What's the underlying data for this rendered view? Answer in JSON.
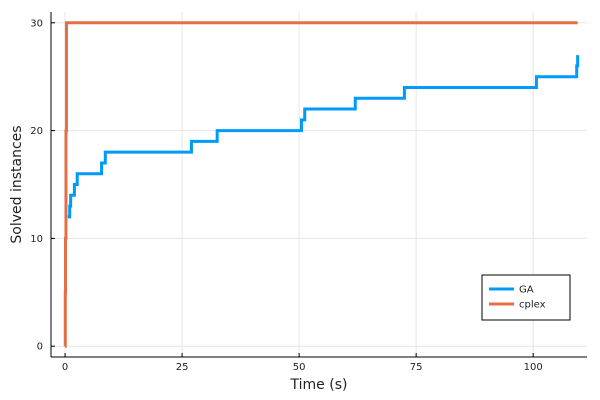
{
  "chart_data": {
    "type": "line",
    "xlabel": "Time (s)",
    "ylabel": "Solved instances",
    "xlim": [
      -3,
      111.5
    ],
    "ylim": [
      -1,
      31
    ],
    "xticks": [
      0,
      25,
      50,
      75,
      100
    ],
    "yticks": [
      0,
      10,
      20,
      30
    ],
    "grid": true,
    "legend_position": "bottom-right",
    "series": [
      {
        "name": "GA",
        "color": "#009AFA",
        "step": true,
        "points": [
          [
            0.6,
            12
          ],
          [
            1.0,
            13
          ],
          [
            1.2,
            14
          ],
          [
            2.0,
            15
          ],
          [
            2.6,
            16
          ],
          [
            7.8,
            17
          ],
          [
            8.6,
            18
          ],
          [
            27.0,
            19
          ],
          [
            32.5,
            20
          ],
          [
            50.5,
            21
          ],
          [
            51.2,
            22
          ],
          [
            62.0,
            23
          ],
          [
            72.5,
            24
          ],
          [
            100.7,
            25
          ],
          [
            109.3,
            26
          ],
          [
            109.5,
            27
          ]
        ]
      },
      {
        "name": "cplex",
        "color": "#E26F46",
        "step": true,
        "points": [
          [
            0.0,
            0
          ],
          [
            0.05,
            5
          ],
          [
            0.1,
            10
          ],
          [
            0.2,
            20
          ],
          [
            0.3,
            30
          ],
          [
            109.5,
            30
          ]
        ]
      }
    ]
  }
}
